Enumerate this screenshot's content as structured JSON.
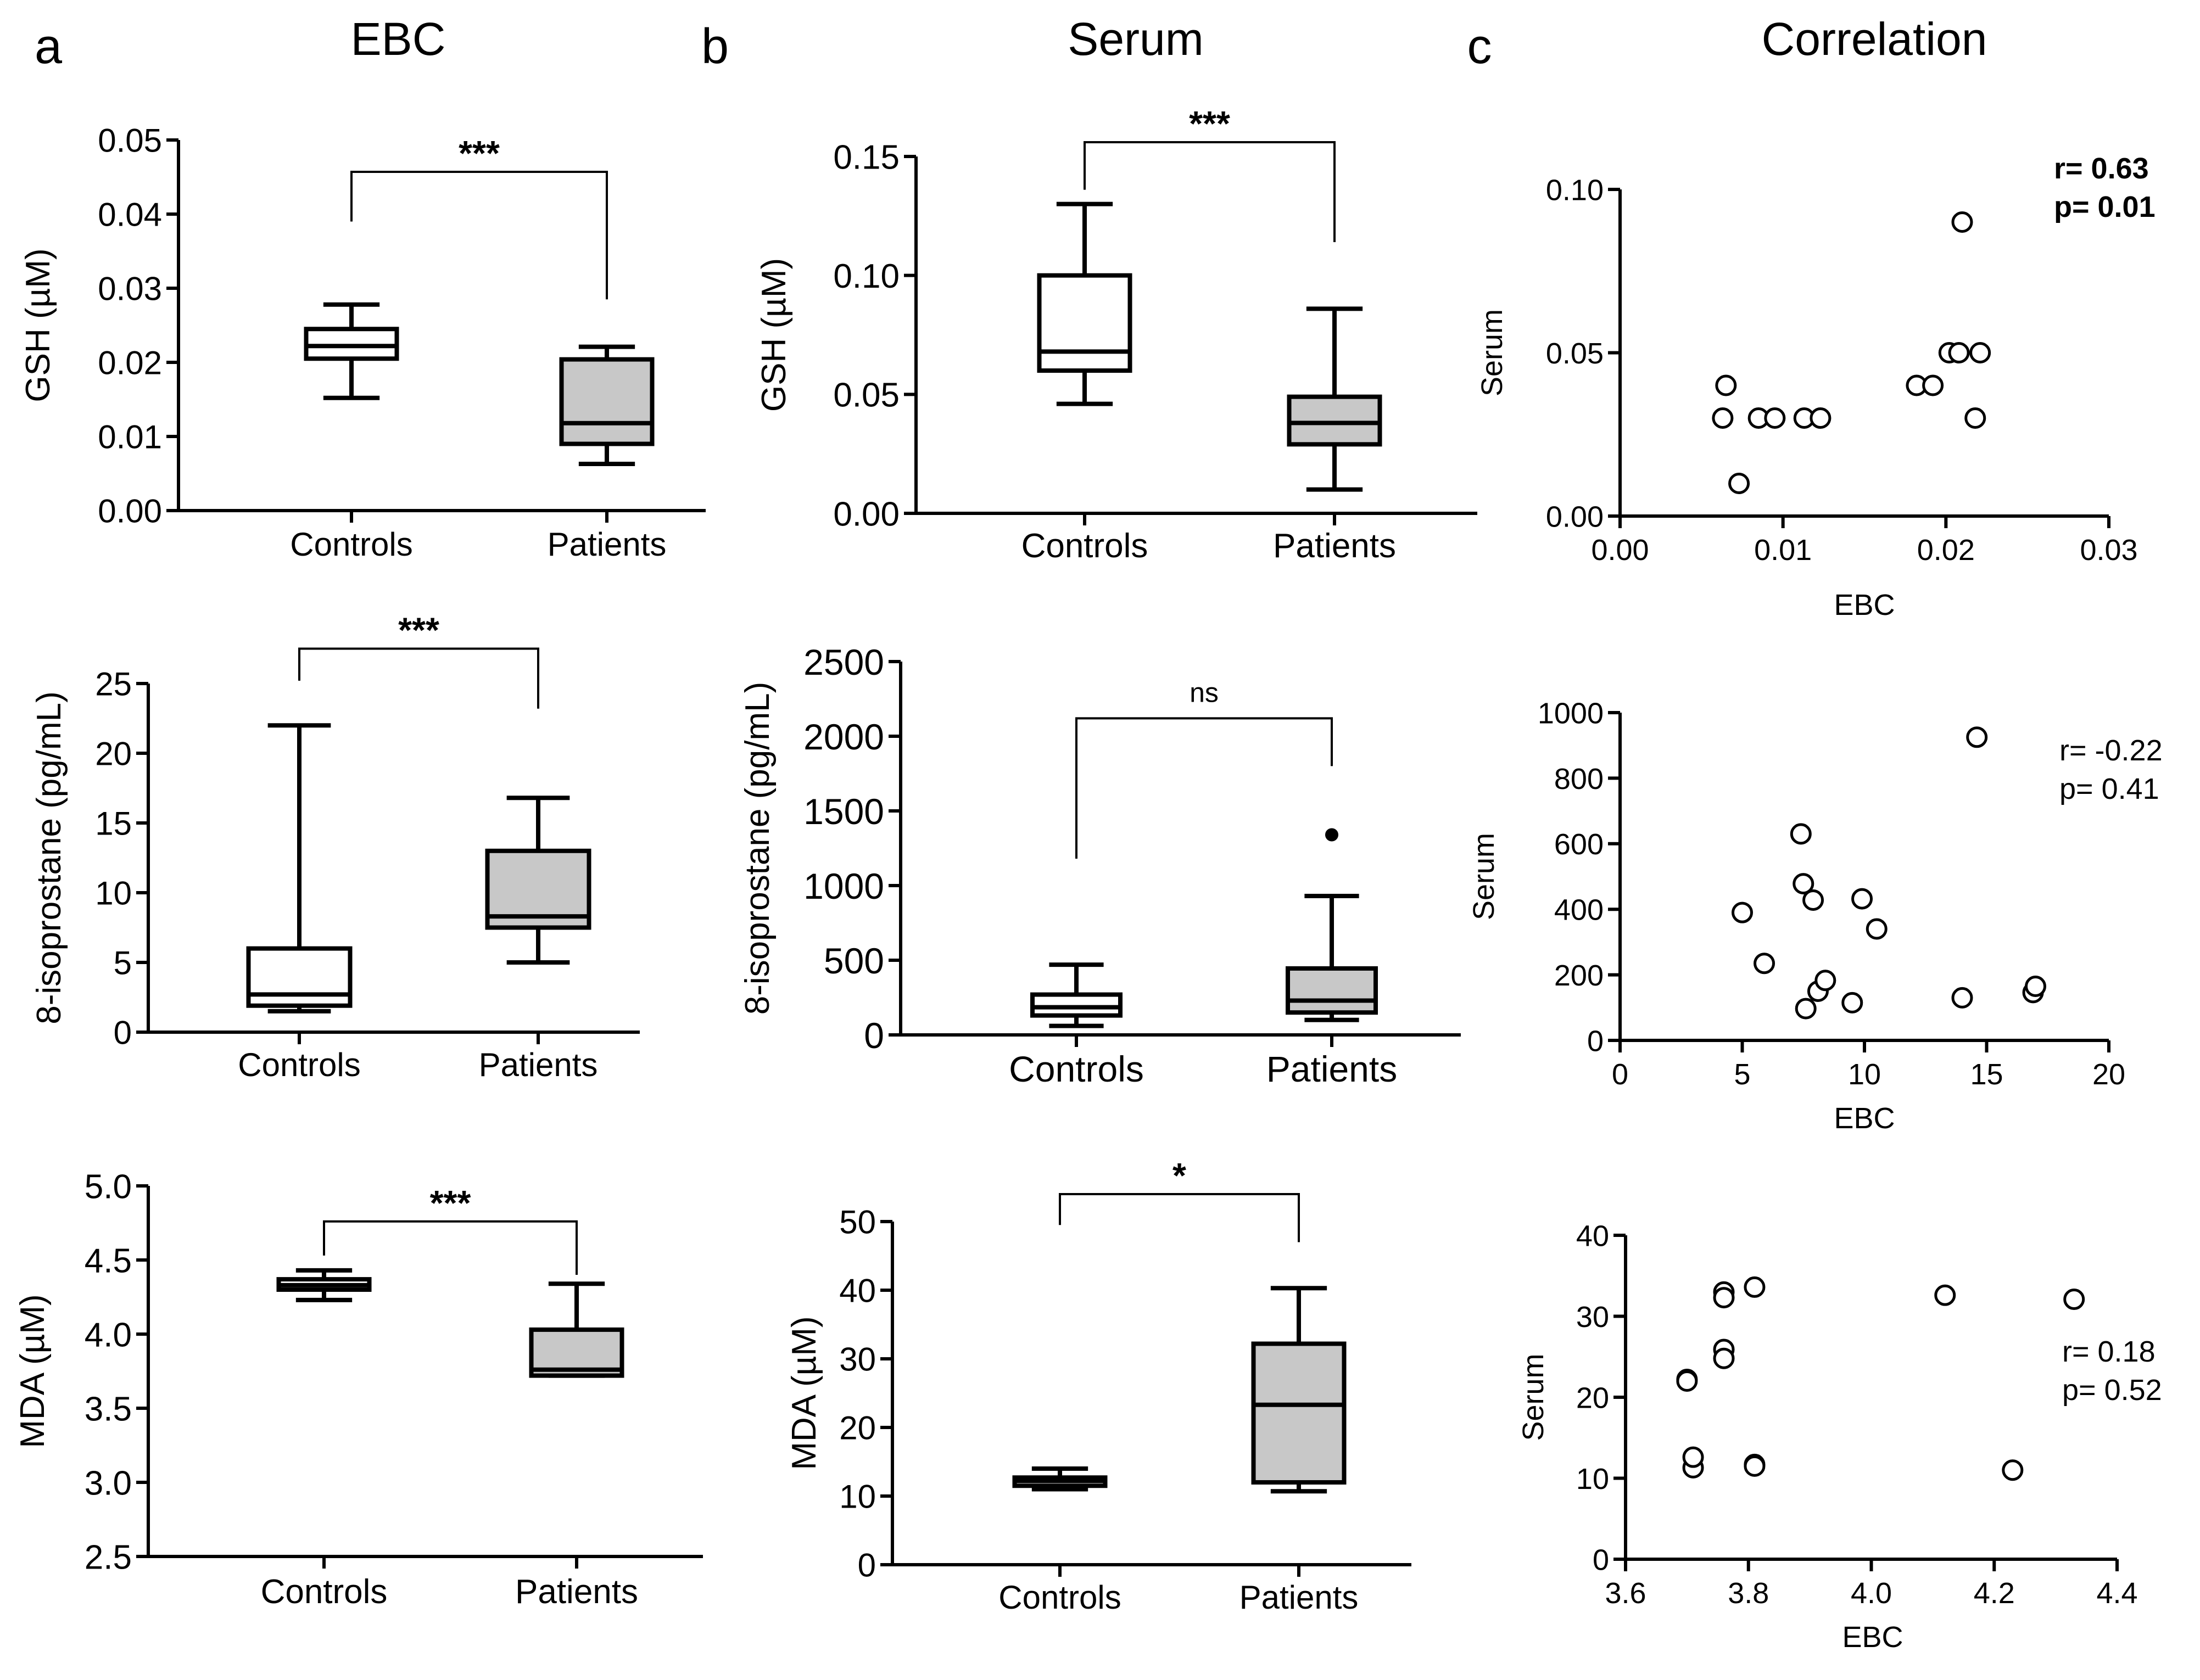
{
  "panel_labels": {
    "a": "a",
    "b": "b",
    "c": "c"
  },
  "column_titles": {
    "ebc": "EBC",
    "serum": "Serum",
    "correlation": "Correlation"
  },
  "colors": {
    "controls_fill": "#ffffff",
    "patients_fill": "#c8c8c8",
    "ink": "#000000"
  },
  "chart_data": [
    {
      "id": "a1",
      "type": "box",
      "column": "EBC",
      "ylabel": "GSH (µM)",
      "categories": [
        "Controls",
        "Patients"
      ],
      "ylim": [
        0,
        0.05
      ],
      "yticks": [
        0,
        0.01,
        0.02,
        0.03,
        0.04,
        0.05
      ],
      "ytick_labels": [
        "0.00",
        "0.01",
        "0.02",
        "0.03",
        "0.04",
        "0.05"
      ],
      "boxes": [
        {
          "min": 0.0152,
          "q1": 0.0205,
          "median": 0.0222,
          "q3": 0.0245,
          "max": 0.0278,
          "fill": "#ffffff"
        },
        {
          "min": 0.0063,
          "q1": 0.009,
          "median": 0.0118,
          "q3": 0.0204,
          "max": 0.0221,
          "fill": "#c8c8c8"
        }
      ],
      "outliers": [],
      "significance": {
        "label": "***",
        "y": 0.0457,
        "left_end": 0.039,
        "right_end": 0.0285
      }
    },
    {
      "id": "a2",
      "type": "box",
      "column": "EBC",
      "ylabel": "8-isoprostane (pg/mL)",
      "categories": [
        "Controls",
        "Patients"
      ],
      "ylim": [
        0,
        25
      ],
      "yticks": [
        0,
        5,
        10,
        15,
        20,
        25
      ],
      "ytick_labels": [
        "0",
        "5",
        "10",
        "15",
        "20",
        "25"
      ],
      "boxes": [
        {
          "min": 1.5,
          "q1": 1.9,
          "median": 2.7,
          "q3": 6.0,
          "max": 22.0,
          "fill": "#ffffff"
        },
        {
          "min": 5.0,
          "q1": 7.5,
          "median": 8.3,
          "q3": 13.0,
          "max": 16.8,
          "fill": "#c8c8c8"
        }
      ],
      "outliers": [],
      "significance": {
        "label": "***",
        "y": 27.5,
        "left_end": 25.2,
        "right_end": 23.2
      }
    },
    {
      "id": "a3",
      "type": "box",
      "column": "EBC",
      "ylabel": "MDA (µM)",
      "categories": [
        "Controls",
        "Patients"
      ],
      "ylim": [
        2.5,
        5.0
      ],
      "yticks": [
        2.5,
        3.0,
        3.5,
        4.0,
        4.5,
        5.0
      ],
      "ytick_labels": [
        "2.5",
        "3.0",
        "3.5",
        "4.0",
        "4.5",
        "5.0"
      ],
      "boxes": [
        {
          "min": 4.23,
          "q1": 4.3,
          "median": 4.33,
          "q3": 4.37,
          "max": 4.43,
          "fill": "#ffffff"
        },
        {
          "min": 3.72,
          "q1": 3.72,
          "median": 3.76,
          "q3": 4.03,
          "max": 4.34,
          "fill": "#c8c8c8"
        }
      ],
      "outliers": [],
      "significance": {
        "label": "***",
        "y": 4.76,
        "left_end": 4.53,
        "right_end": 4.4
      }
    },
    {
      "id": "b1",
      "type": "box",
      "column": "Serum",
      "ylabel": "GSH (µM)",
      "categories": [
        "Controls",
        "Patients"
      ],
      "ylim": [
        0,
        0.15
      ],
      "yticks": [
        0,
        0.05,
        0.1,
        0.15
      ],
      "ytick_labels": [
        "0.00",
        "0.05",
        "0.10",
        "0.15"
      ],
      "boxes": [
        {
          "min": 0.046,
          "q1": 0.06,
          "median": 0.068,
          "q3": 0.1,
          "max": 0.13,
          "fill": "#ffffff"
        },
        {
          "min": 0.01,
          "q1": 0.029,
          "median": 0.038,
          "q3": 0.049,
          "max": 0.086,
          "fill": "#c8c8c8"
        }
      ],
      "outliers": [],
      "significance": {
        "label": "***",
        "y": 0.156,
        "left_end": 0.136,
        "right_end": 0.114
      }
    },
    {
      "id": "b2",
      "type": "box",
      "column": "Serum",
      "ylabel": "8-isoprostane (pg/mL)",
      "categories": [
        "Controls",
        "Patients"
      ],
      "ylim": [
        0,
        2500
      ],
      "yticks": [
        0,
        500,
        1000,
        1500,
        2000,
        2500
      ],
      "ytick_labels": [
        "0",
        "500",
        "1000",
        "1500",
        "2000",
        "2500"
      ],
      "boxes": [
        {
          "min": 60,
          "q1": 130,
          "median": 185,
          "q3": 270,
          "max": 470,
          "fill": "#ffffff"
        },
        {
          "min": 100,
          "q1": 150,
          "median": 230,
          "q3": 445,
          "max": 930,
          "fill": "#c8c8c8"
        }
      ],
      "outliers": [
        {
          "category": "Patients",
          "value": 1340
        }
      ],
      "significance": {
        "label": "ns",
        "y": 2120,
        "left_end": 1180,
        "right_end": 1800
      }
    },
    {
      "id": "b3",
      "type": "box",
      "column": "Serum",
      "ylabel": "MDA (µM)",
      "categories": [
        "Controls",
        "Patients"
      ],
      "ylim": [
        0,
        50
      ],
      "yticks": [
        0,
        10,
        20,
        30,
        40,
        50
      ],
      "ytick_labels": [
        "0",
        "10",
        "20",
        "30",
        "40",
        "50"
      ],
      "boxes": [
        {
          "min": 11.0,
          "q1": 11.5,
          "median": 12.2,
          "q3": 12.7,
          "max": 14.0,
          "fill": "#ffffff"
        },
        {
          "min": 10.7,
          "q1": 12.0,
          "median": 23.3,
          "q3": 32.2,
          "max": 40.3,
          "fill": "#c8c8c8"
        }
      ],
      "outliers": [],
      "significance": {
        "label": "*",
        "y": 54.0,
        "left_end": 49.5,
        "right_end": 47.0
      }
    },
    {
      "id": "c1",
      "type": "scatter",
      "column": "Correlation",
      "xlabel": "EBC",
      "ylabel": "Serum",
      "xlim": [
        0,
        0.03
      ],
      "ylim": [
        0,
        0.1
      ],
      "xticks": [
        0,
        0.01,
        0.02,
        0.03
      ],
      "xtick_labels": [
        "0.00",
        "0.01",
        "0.02",
        "0.03"
      ],
      "yticks": [
        0,
        0.05,
        0.1
      ],
      "ytick_labels": [
        "0.00",
        "0.05",
        "0.10"
      ],
      "stats": {
        "r": "r= 0.63",
        "p": "p= 0.01",
        "bold": true
      },
      "points": [
        [
          0.0065,
          0.04
        ],
        [
          0.0063,
          0.03
        ],
        [
          0.0073,
          0.01
        ],
        [
          0.0085,
          0.03
        ],
        [
          0.0095,
          0.03
        ],
        [
          0.0113,
          0.03
        ],
        [
          0.0123,
          0.03
        ],
        [
          0.0182,
          0.04
        ],
        [
          0.0192,
          0.04
        ],
        [
          0.0202,
          0.05
        ],
        [
          0.0208,
          0.05
        ],
        [
          0.021,
          0.09
        ],
        [
          0.0221,
          0.05
        ],
        [
          0.0218,
          0.03
        ]
      ]
    },
    {
      "id": "c2",
      "type": "scatter",
      "column": "Correlation",
      "xlabel": "EBC",
      "ylabel": "Serum",
      "xlim": [
        0,
        20
      ],
      "ylim": [
        0,
        1000
      ],
      "xticks": [
        0,
        5,
        10,
        15,
        20
      ],
      "xtick_labels": [
        "0",
        "5",
        "10",
        "15",
        "20"
      ],
      "yticks": [
        0,
        200,
        400,
        600,
        800,
        1000
      ],
      "ytick_labels": [
        "0",
        "200",
        "400",
        "600",
        "800",
        "1000"
      ],
      "stats": {
        "r": "r= -0.22",
        "p": "p= 0.41",
        "bold": false
      },
      "points": [
        [
          5.0,
          390
        ],
        [
          5.9,
          235
        ],
        [
          7.4,
          630
        ],
        [
          7.5,
          478
        ],
        [
          7.6,
          97
        ],
        [
          7.9,
          428
        ],
        [
          8.1,
          150
        ],
        [
          8.4,
          183
        ],
        [
          9.5,
          115
        ],
        [
          9.9,
          432
        ],
        [
          10.5,
          340
        ],
        [
          14.0,
          130
        ],
        [
          14.6,
          925
        ],
        [
          16.9,
          146
        ],
        [
          17.0,
          165
        ]
      ]
    },
    {
      "id": "c3",
      "type": "scatter",
      "column": "Correlation",
      "xlabel": "EBC",
      "ylabel": "Serum",
      "xlim": [
        3.6,
        4.4
      ],
      "ylim": [
        0,
        40
      ],
      "xticks": [
        3.6,
        3.8,
        4.0,
        4.2,
        4.4
      ],
      "xtick_labels": [
        "3.6",
        "3.8",
        "4.0",
        "4.2",
        "4.4"
      ],
      "yticks": [
        0,
        10,
        20,
        30,
        40
      ],
      "ytick_labels": [
        "0",
        "10",
        "20",
        "30",
        "40"
      ],
      "stats": {
        "r": "r= 0.18",
        "p": "p= 0.52",
        "bold": false
      },
      "points": [
        [
          3.7,
          22.2
        ],
        [
          3.7,
          22.0
        ],
        [
          3.71,
          11.3
        ],
        [
          3.71,
          12.6
        ],
        [
          3.76,
          33.0
        ],
        [
          3.76,
          32.3
        ],
        [
          3.76,
          25.9
        ],
        [
          3.76,
          24.8
        ],
        [
          3.81,
          33.6
        ],
        [
          3.81,
          11.7
        ],
        [
          3.81,
          11.5
        ],
        [
          4.12,
          32.6
        ],
        [
          4.23,
          11.0
        ],
        [
          4.33,
          32.1
        ]
      ]
    }
  ]
}
